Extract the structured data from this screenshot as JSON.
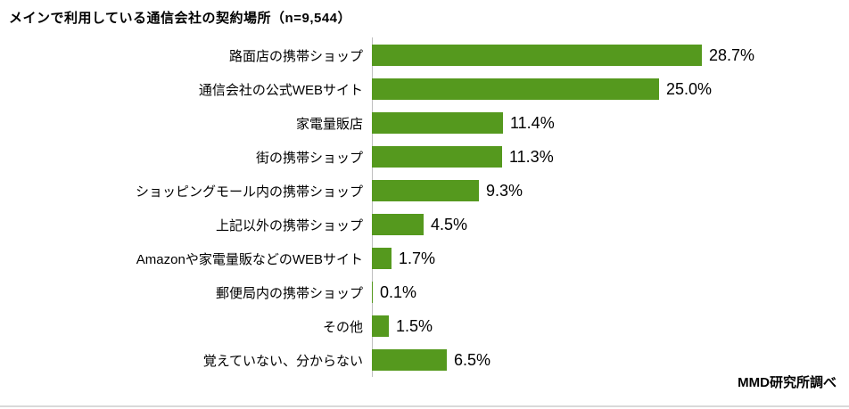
{
  "title": "メインで利用している通信会社の契約場所（n=9,544）",
  "source": "MMD研究所調べ",
  "colors": {
    "bar": "#55991E",
    "axis": "#BFBFBF",
    "text": "#000000",
    "divider": "#D9D9D9",
    "background": "#FFFFFF"
  },
  "chart_data": {
    "type": "bar",
    "orientation": "horizontal",
    "title": "メインで利用している通信会社の契約場所（n=9,544）",
    "xlabel": "",
    "ylabel": "",
    "xlim": [
      0,
      30
    ],
    "grid": false,
    "legend": "none",
    "categories": [
      "路面店の携帯ショップ",
      "通信会社の公式WEBサイト",
      "家電量販店",
      "街の携帯ショップ",
      "ショッピングモール内の携帯ショップ",
      "上記以外の携帯ショップ",
      "Amazonや家電量販などのWEBサイト",
      "郵便局内の携帯ショップ",
      "その他",
      "覚えていない、分からない"
    ],
    "values": [
      28.7,
      25.0,
      11.4,
      11.3,
      9.3,
      4.5,
      1.7,
      0.1,
      1.5,
      6.5
    ],
    "value_labels": [
      "28.7%",
      "25.0%",
      "11.4%",
      "11.3%",
      "9.3%",
      "4.5%",
      "1.7%",
      "0.1%",
      "1.5%",
      "6.5%"
    ]
  }
}
